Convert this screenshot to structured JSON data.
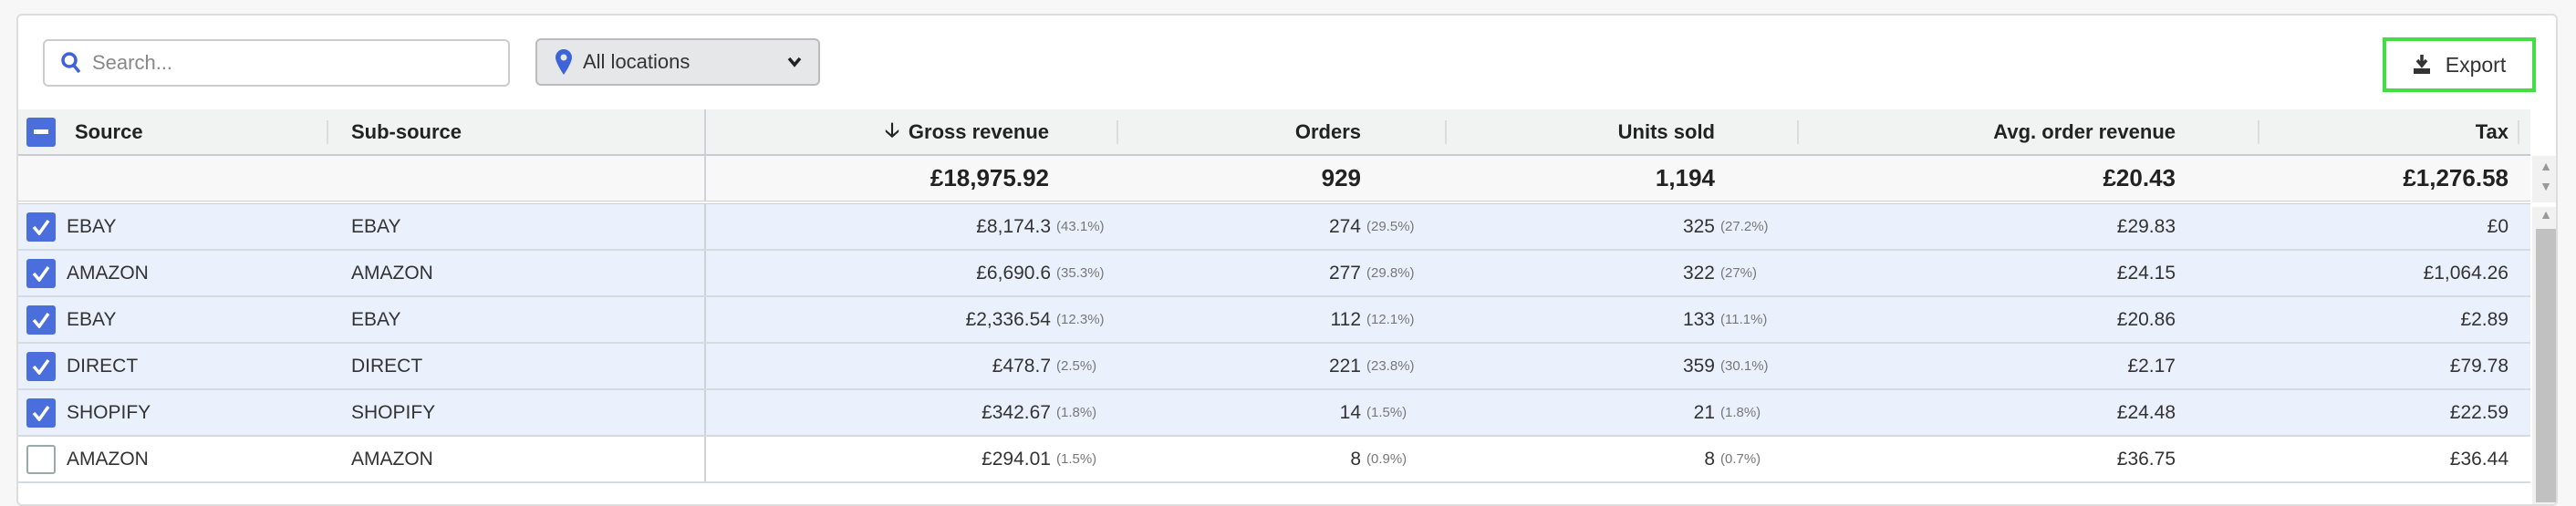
{
  "toolbar": {
    "search_placeholder": "Search...",
    "location_label": "All locations",
    "export_label": "Export"
  },
  "columns": {
    "source": "Source",
    "sub_source": "Sub-source",
    "gross_revenue": "Gross revenue",
    "orders": "Orders",
    "units_sold": "Units sold",
    "avg_order_revenue": "Avg. order revenue",
    "tax": "Tax"
  },
  "totals": {
    "gross_revenue": "£18,975.92",
    "orders": "929",
    "units_sold": "1,194",
    "avg_order_revenue": "£20.43",
    "tax": "£1,276.58"
  },
  "rows": [
    {
      "checked": true,
      "source": "EBAY",
      "sub_source": "EBAY",
      "gross": "£8,174.3",
      "gross_pct": "(43.1%)",
      "orders": "274",
      "orders_pct": "(29.5%)",
      "units": "325",
      "units_pct": "(27.2%)",
      "avg": "£29.83",
      "tax": "£0"
    },
    {
      "checked": true,
      "source": "AMAZON",
      "sub_source": "AMAZON",
      "gross": "£6,690.6",
      "gross_pct": "(35.3%)",
      "orders": "277",
      "orders_pct": "(29.8%)",
      "units": "322",
      "units_pct": "(27%)",
      "avg": "£24.15",
      "tax": "£1,064.26"
    },
    {
      "checked": true,
      "source": "EBAY",
      "sub_source": "EBAY",
      "gross": "£2,336.54",
      "gross_pct": "(12.3%)",
      "orders": "112",
      "orders_pct": "(12.1%)",
      "units": "133",
      "units_pct": "(11.1%)",
      "avg": "£20.86",
      "tax": "£2.89"
    },
    {
      "checked": true,
      "source": "DIRECT",
      "sub_source": "DIRECT",
      "gross": "£478.7",
      "gross_pct": "(2.5%)",
      "orders": "221",
      "orders_pct": "(23.8%)",
      "units": "359",
      "units_pct": "(30.1%)",
      "avg": "£2.17",
      "tax": "£79.78"
    },
    {
      "checked": true,
      "source": "SHOPIFY",
      "sub_source": "SHOPIFY",
      "gross": "£342.67",
      "gross_pct": "(1.8%)",
      "orders": "14",
      "orders_pct": "(1.5%)",
      "units": "21",
      "units_pct": "(1.8%)",
      "avg": "£24.48",
      "tax": "£22.59"
    },
    {
      "checked": false,
      "source": "AMAZON",
      "sub_source": "AMAZON",
      "gross": "£294.01",
      "gross_pct": "(1.5%)",
      "orders": "8",
      "orders_pct": "(0.9%)",
      "units": "8",
      "units_pct": "(0.7%)",
      "avg": "£36.75",
      "tax": "£36.44"
    }
  ],
  "colors": {
    "accent": "#4a6fdc",
    "selected_row": "#eaf1fd",
    "export_highlight": "#45dd45"
  }
}
